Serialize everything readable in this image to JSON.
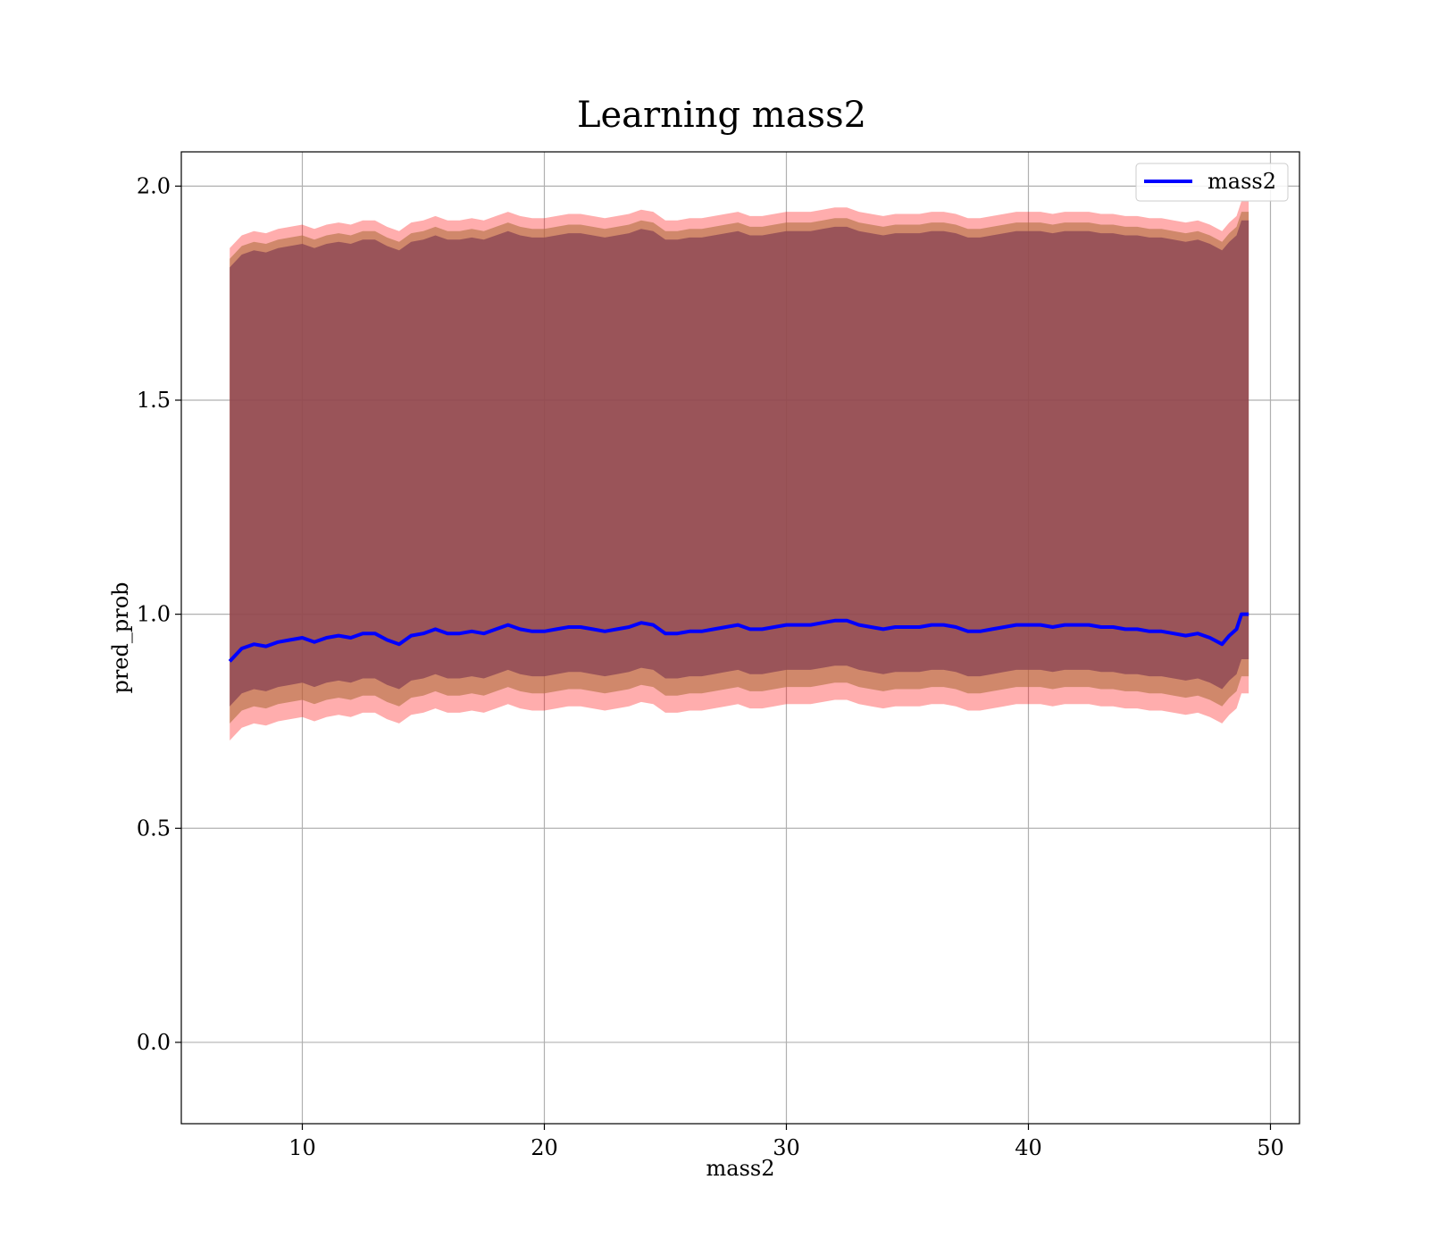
{
  "chart_data": {
    "type": "line",
    "title": "Learning mass2",
    "xlabel": "mass2",
    "ylabel": "pred_prob",
    "xlim": [
      5,
      51.2
    ],
    "ylim": [
      -0.19,
      2.08
    ],
    "xticks": [
      10,
      20,
      30,
      40,
      50
    ],
    "yticks": [
      0.0,
      0.5,
      1.0,
      1.5,
      2.0
    ],
    "xtick_labels": [
      "10",
      "20",
      "30",
      "40",
      "50"
    ],
    "ytick_labels": [
      "0.0",
      "0.5",
      "1.0",
      "1.5",
      "2.0"
    ],
    "grid": true,
    "legend_position": "top-right",
    "series": [
      {
        "name": "mass2",
        "color": "#0000ff",
        "x": [
          7.0,
          7.5,
          8.0,
          8.5,
          9.0,
          9.5,
          10.0,
          10.5,
          11.0,
          11.5,
          12.0,
          12.5,
          13.0,
          13.5,
          14.0,
          14.5,
          15.0,
          15.5,
          16.0,
          16.5,
          17.0,
          17.5,
          18.0,
          18.5,
          19.0,
          19.5,
          20.0,
          20.5,
          21.0,
          21.5,
          22.0,
          22.5,
          23.0,
          23.5,
          24.0,
          24.5,
          25.0,
          25.5,
          26.0,
          26.5,
          27.0,
          27.5,
          28.0,
          28.5,
          29.0,
          29.5,
          30.0,
          30.5,
          31.0,
          31.5,
          32.0,
          32.5,
          33.0,
          33.5,
          34.0,
          34.5,
          35.0,
          35.5,
          36.0,
          36.5,
          37.0,
          37.5,
          38.0,
          38.5,
          39.0,
          39.5,
          40.0,
          40.5,
          41.0,
          41.5,
          42.0,
          42.5,
          43.0,
          43.5,
          44.0,
          44.5,
          45.0,
          45.5,
          46.0,
          46.5,
          47.0,
          47.5,
          48.0,
          48.3,
          48.6,
          48.8,
          49.1
        ],
        "values": [
          0.89,
          0.92,
          0.93,
          0.925,
          0.935,
          0.94,
          0.945,
          0.935,
          0.945,
          0.95,
          0.945,
          0.955,
          0.955,
          0.94,
          0.93,
          0.95,
          0.955,
          0.965,
          0.955,
          0.955,
          0.96,
          0.955,
          0.965,
          0.975,
          0.965,
          0.96,
          0.96,
          0.965,
          0.97,
          0.97,
          0.965,
          0.96,
          0.965,
          0.97,
          0.98,
          0.975,
          0.955,
          0.955,
          0.96,
          0.96,
          0.965,
          0.97,
          0.975,
          0.965,
          0.965,
          0.97,
          0.975,
          0.975,
          0.975,
          0.98,
          0.985,
          0.985,
          0.975,
          0.97,
          0.965,
          0.97,
          0.97,
          0.97,
          0.975,
          0.975,
          0.97,
          0.96,
          0.96,
          0.965,
          0.97,
          0.975,
          0.975,
          0.975,
          0.97,
          0.975,
          0.975,
          0.975,
          0.97,
          0.97,
          0.965,
          0.965,
          0.96,
          0.96,
          0.955,
          0.95,
          0.955,
          0.945,
          0.93,
          0.95,
          0.965,
          1.0,
          1.0
        ],
        "band_outer": {
          "color": "#ff0000",
          "lower_offset": -0.185,
          "upper_offset": 0.965
        },
        "band_middle": {
          "color": "#b07040",
          "lower_offset": -0.145,
          "upper_offset": 0.94
        },
        "band_inner": {
          "color": "#8a4555",
          "lower_offset": -0.105,
          "upper_offset": 0.92
        }
      }
    ]
  }
}
